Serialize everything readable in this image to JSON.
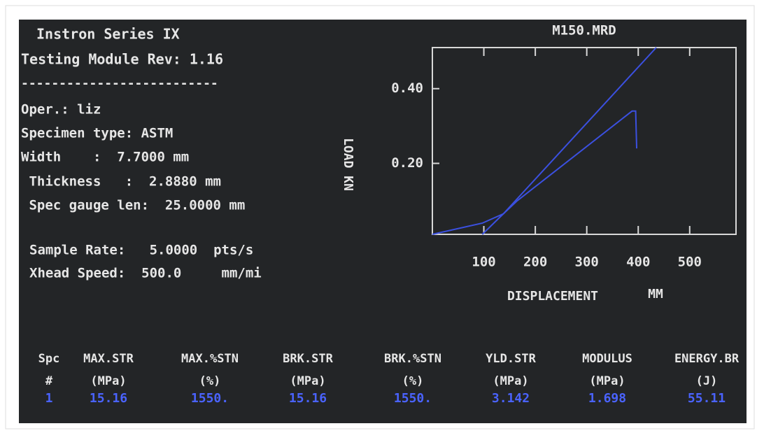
{
  "header": {
    "title": "Instron Series IX",
    "subtitle": "Testing Module Rev: 1.16",
    "rule": "--------------------------"
  },
  "fields": [
    "Oper.: liz",
    "Specimen type: ASTM",
    "Width    :  7.7000 mm",
    " Thickness   :  2.8880 mm",
    " Spec gauge len:  25.0000 mm"
  ],
  "settings": [
    "Sample Rate:   5.0000  pts/s",
    "Xhead Speed:  500.0     mm/mi"
  ],
  "chart_data": {
    "type": "line",
    "title": "M150.MRD",
    "y_label": "LOAD KN",
    "x_label": "DISPLACEMENT",
    "x_unit": "MM",
    "xlim": [
      0,
      590
    ],
    "xticks": [
      100,
      200,
      300,
      400,
      500
    ],
    "ylim": [
      0.01,
      0.51
    ],
    "yticks": [
      {
        "value": 0.2,
        "label": "0.20"
      },
      {
        "value": 0.4,
        "label": "0.40"
      }
    ],
    "series": [
      {
        "color": "#3b50e0",
        "x": [
          97,
          138,
          435
        ],
        "values": [
          0.01,
          0.065,
          0.51
        ]
      },
      {
        "color": "#3b50e0",
        "x": [
          0,
          97,
          138,
          165,
          388,
          395,
          397
        ],
        "values": [
          0.01,
          0.04,
          0.065,
          0.1,
          0.34,
          0.34,
          0.24
        ]
      }
    ]
  },
  "table": {
    "headers": [
      [
        "Spc",
        "#"
      ],
      [
        "MAX.STR",
        "(MPa)"
      ],
      [
        "MAX.%STN",
        "(%)"
      ],
      [
        "BRK.STR",
        "(MPa)"
      ],
      [
        "BRK.%STN",
        "(%)"
      ],
      [
        "YLD.STR",
        "(MPa)"
      ],
      [
        "MODULUS",
        "(MPa)"
      ],
      [
        "ENERGY.BR",
        "(J)"
      ]
    ],
    "rows": [
      [
        "1",
        "15.16",
        "1550.",
        "15.16",
        "1550.",
        "3.142",
        "1.698",
        "55.11"
      ]
    ]
  }
}
